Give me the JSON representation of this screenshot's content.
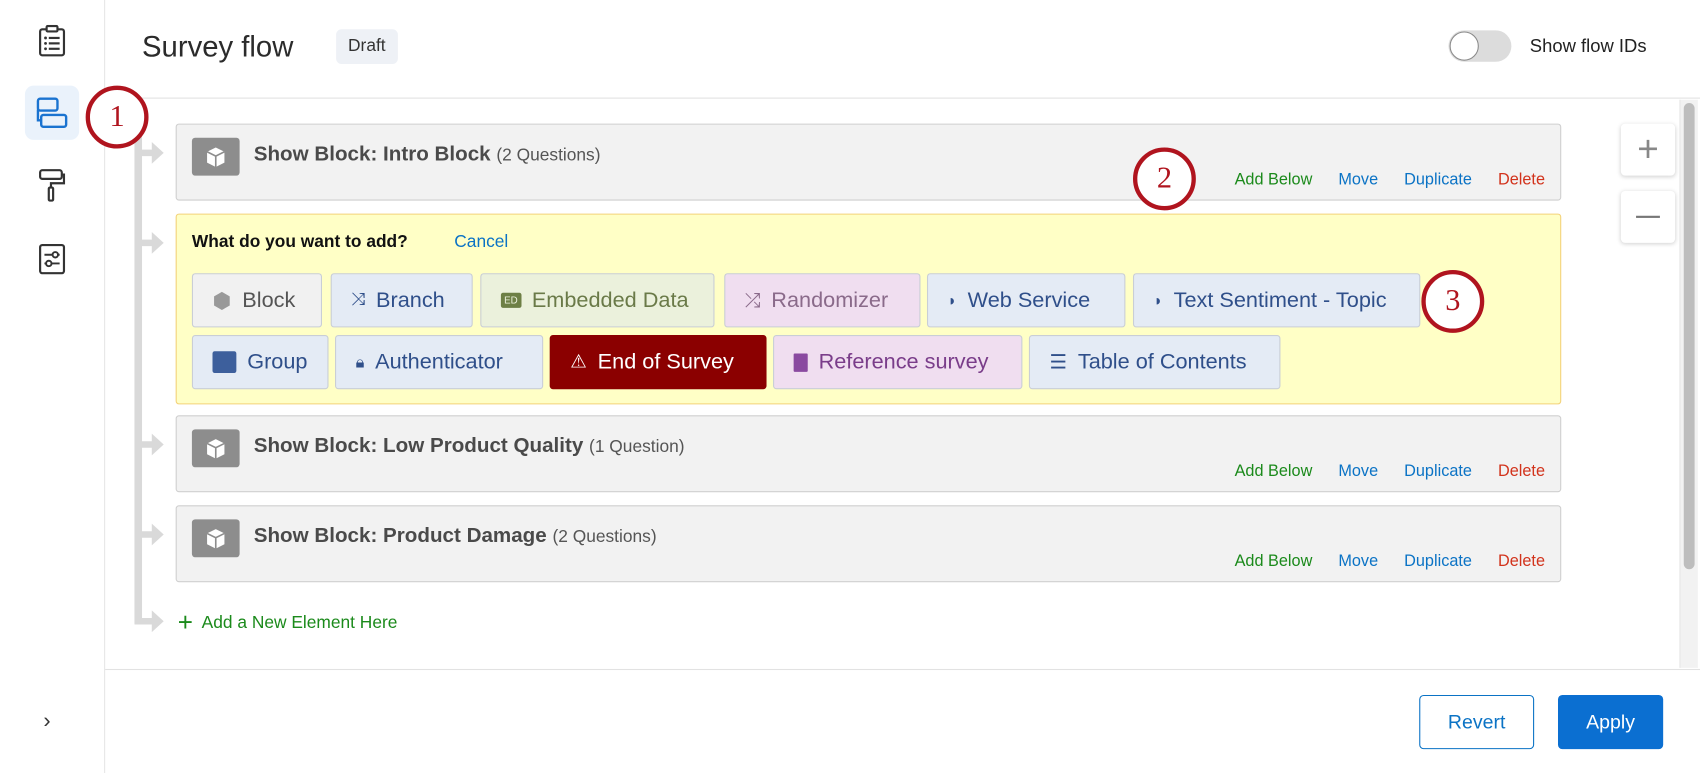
{
  "header": {
    "title": "Survey flow",
    "status_badge": "Draft",
    "toggle_label": "Show flow IDs",
    "toggle_on": false
  },
  "sidebar": {
    "items": [
      {
        "icon": "clipboard-list-icon"
      },
      {
        "icon": "survey-flow-icon",
        "active": true
      },
      {
        "icon": "paint-roller-icon"
      },
      {
        "icon": "settings-sliders-icon"
      }
    ],
    "expand_icon": "chevron-right-icon"
  },
  "blocks": [
    {
      "title": "Show Block: Intro Block",
      "count": "(2 Questions)"
    },
    {
      "title": "Show Block: Low Product Quality",
      "count": "(1 Question)"
    },
    {
      "title": "Show Block: Product Damage",
      "count": "(2 Questions)"
    }
  ],
  "actions": {
    "add_below": "Add Below",
    "move": "Move",
    "duplicate": "Duplicate",
    "delete": "Delete"
  },
  "add_panel": {
    "question": "What do you want to add?",
    "cancel": "Cancel",
    "options": [
      "Block",
      "Branch",
      "Embedded Data",
      "Randomizer",
      "Web Service",
      "Text Sentiment - Topic",
      "Group",
      "Authenticator",
      "End of Survey",
      "Reference survey",
      "Table of Contents"
    ]
  },
  "add_new_element": "Add a New Element Here",
  "footer": {
    "revert": "Revert",
    "apply": "Apply"
  },
  "annotations": [
    "1",
    "2",
    "3"
  ],
  "colors": {
    "accent": "#0b73c5",
    "add": "#1b8a1b",
    "delete": "#d2331c",
    "end_of_survey": "#8b0000",
    "panel": "#ffffc6",
    "annotation": "#b0141e"
  }
}
